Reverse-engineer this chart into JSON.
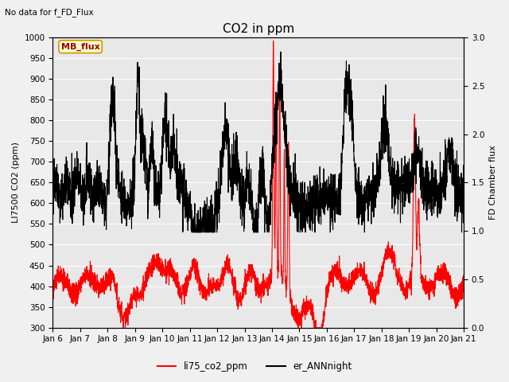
{
  "title": "CO2 in ppm",
  "top_left_text": "No data for f_FD_Flux",
  "ylabel_left": "LI7500 CO2 (ppm)",
  "ylabel_right": "FD Chamber flux",
  "ylim_left": [
    300,
    1000
  ],
  "ylim_right": [
    0.0,
    3.0
  ],
  "xtick_labels": [
    "Jan 6",
    "Jan 7",
    "Jan 8",
    "Jan 9",
    "Jan 10",
    "Jan 11",
    "Jan 12",
    "Jan 13",
    "Jan 14",
    "Jan 15",
    "Jan 16",
    "Jan 17",
    "Jan 18",
    "Jan 19",
    "Jan 20",
    "Jan 21"
  ],
  "legend_red_label": "li75_co2_ppm",
  "legend_black_label": "er_ANNnight",
  "mb_flux_label": "MB_flux",
  "background_color": "#f0f0f0",
  "plot_bg_color": "#e8e8e8",
  "red_color": "#ff0000",
  "black_color": "#000000",
  "red_linewidth": 0.8,
  "black_linewidth": 0.8,
  "title_fontsize": 11,
  "label_fontsize": 8,
  "tick_fontsize": 7.5
}
